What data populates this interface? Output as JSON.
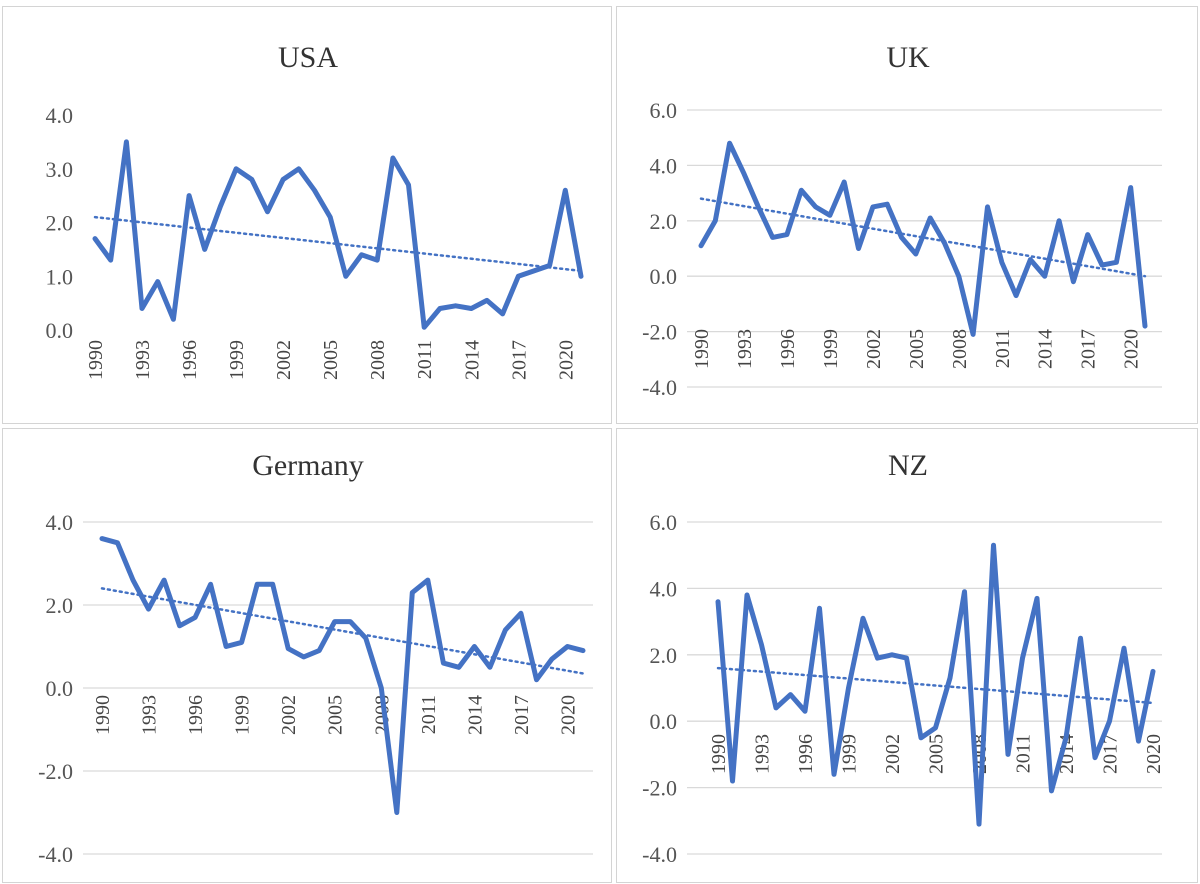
{
  "colors": {
    "line": "#4472C4",
    "trend": "#4472C4",
    "grid": "#d9d9d9",
    "border": "#d4d4d4"
  },
  "chart_data": [
    {
      "type": "line",
      "title": "USA",
      "x": [
        1990,
        1991,
        1992,
        1993,
        1994,
        1995,
        1996,
        1997,
        1998,
        1999,
        2000,
        2001,
        2002,
        2003,
        2004,
        2005,
        2006,
        2007,
        2008,
        2009,
        2010,
        2011,
        2012,
        2013,
        2014,
        2015,
        2016,
        2017,
        2018,
        2019,
        2020,
        2021
      ],
      "x_tick_labels": [
        "1990",
        "1993",
        "1996",
        "1999",
        "2002",
        "2005",
        "2008",
        "2011",
        "2014",
        "2017",
        "2020"
      ],
      "values": [
        1.7,
        1.3,
        3.5,
        0.4,
        0.9,
        0.2,
        2.5,
        1.5,
        2.3,
        3.0,
        2.8,
        2.2,
        2.8,
        3.0,
        2.6,
        2.1,
        1.0,
        1.4,
        1.3,
        3.2,
        2.7,
        0.05,
        0.4,
        0.45,
        0.4,
        0.55,
        0.3,
        1.0,
        1.1,
        1.2,
        2.6,
        1.0
      ],
      "trendline": [
        2.1,
        1.1
      ],
      "y_tick_labels": [
        "0.0",
        "1.0",
        "2.0",
        "3.0",
        "4.0"
      ],
      "ylim": [
        0,
        4
      ],
      "grid": false
    },
    {
      "type": "line",
      "title": "UK",
      "x": [
        1990,
        1991,
        1992,
        1993,
        1994,
        1995,
        1996,
        1997,
        1998,
        1999,
        2000,
        2001,
        2002,
        2003,
        2004,
        2005,
        2006,
        2007,
        2008,
        2009,
        2010,
        2011,
        2012,
        2013,
        2014,
        2015,
        2016,
        2017,
        2018,
        2019,
        2020,
        2021
      ],
      "x_tick_labels": [
        "1990",
        "1993",
        "1996",
        "1999",
        "2002",
        "2005",
        "2008",
        "2011",
        "2014",
        "2017",
        "2020"
      ],
      "values": [
        1.1,
        2.0,
        4.8,
        3.7,
        2.5,
        1.4,
        1.5,
        3.1,
        2.5,
        2.2,
        3.4,
        1.0,
        2.5,
        2.6,
        1.4,
        0.8,
        2.1,
        1.2,
        0.0,
        -2.1,
        2.5,
        0.5,
        -0.7,
        0.6,
        0.0,
        2.0,
        -0.2,
        1.5,
        0.4,
        0.5,
        3.2,
        -1.8
      ],
      "trendline": [
        2.8,
        0.0
      ],
      "y_tick_labels": [
        "-4.0",
        "-2.0",
        "0.0",
        "2.0",
        "4.0",
        "6.0"
      ],
      "ylim": [
        -4,
        6
      ],
      "grid": true
    },
    {
      "type": "line",
      "title": "Germany",
      "x": [
        1990,
        1991,
        1992,
        1993,
        1994,
        1995,
        1996,
        1997,
        1998,
        1999,
        2000,
        2001,
        2002,
        2003,
        2004,
        2005,
        2006,
        2007,
        2008,
        2009,
        2010,
        2011,
        2012,
        2013,
        2014,
        2015,
        2016,
        2017,
        2018,
        2019,
        2020,
        2021
      ],
      "x_tick_labels": [
        "1990",
        "1993",
        "1996",
        "1999",
        "2002",
        "2005",
        "2008",
        "2011",
        "2014",
        "2017",
        "2020"
      ],
      "values": [
        3.6,
        3.5,
        2.6,
        1.9,
        2.6,
        1.5,
        1.7,
        2.5,
        1.0,
        1.1,
        2.5,
        2.5,
        0.95,
        0.75,
        0.9,
        1.6,
        1.6,
        1.2,
        0.0,
        -3.0,
        2.3,
        2.6,
        0.6,
        0.5,
        1.0,
        0.5,
        1.4,
        1.8,
        0.2,
        0.7,
        1.0,
        0.9
      ],
      "trendline": [
        2.4,
        0.35
      ],
      "y_tick_labels": [
        "-4.0",
        "-2.0",
        "0.0",
        "2.0",
        "4.0"
      ],
      "ylim": [
        -4,
        4
      ],
      "grid": true
    },
    {
      "type": "line",
      "title": "NZ",
      "x": [
        1990,
        1991,
        1992,
        1993,
        1994,
        1995,
        1996,
        1997,
        1998,
        1999,
        2000,
        2001,
        2002,
        2003,
        2004,
        2005,
        2006,
        2007,
        2008,
        2009,
        2010,
        2011,
        2012,
        2013,
        2014,
        2015,
        2016,
        2017,
        2018,
        2019,
        2020
      ],
      "x_tick_labels": [
        "1990",
        "1993",
        "1996",
        "1999",
        "2002",
        "2005",
        "2008",
        "2011",
        "2014",
        "2017",
        "2020"
      ],
      "values": [
        3.6,
        -1.8,
        3.8,
        2.3,
        0.4,
        0.8,
        0.3,
        3.4,
        -1.6,
        1.0,
        3.1,
        1.9,
        2.0,
        1.9,
        -0.5,
        -0.2,
        1.3,
        3.9,
        -3.1,
        5.3,
        -1.0,
        1.9,
        3.7,
        -2.1,
        -0.5,
        2.5,
        -1.1,
        0.0,
        2.2,
        -0.6,
        1.5
      ],
      "trendline": [
        1.6,
        0.55
      ],
      "y_tick_labels": [
        "-4.0",
        "-2.0",
        "0.0",
        "2.0",
        "4.0",
        "6.0"
      ],
      "ylim": [
        -4,
        6
      ],
      "grid": true
    }
  ]
}
